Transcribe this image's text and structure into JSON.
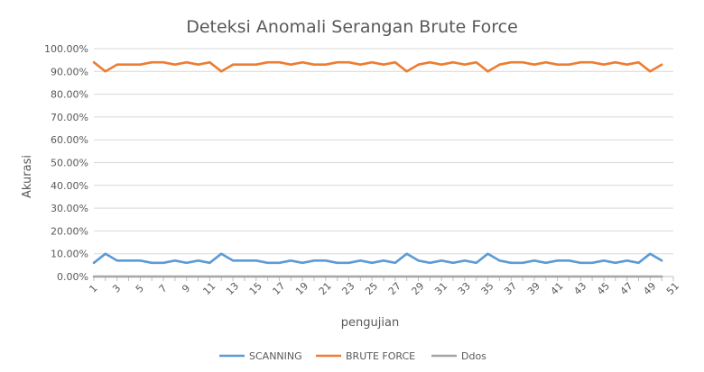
{
  "chart_data": {
    "type": "line",
    "title": "Deteksi Anomali Serangan Brute Force",
    "xlabel": "pengujian",
    "ylabel": "Akurasi",
    "ylim": [
      0,
      1
    ],
    "y_ticks": [
      0,
      0.1,
      0.2,
      0.3,
      0.4,
      0.5,
      0.6,
      0.7,
      0.8,
      0.9,
      1.0
    ],
    "y_tick_labels": [
      "0.00%",
      "10.00%",
      "20.00%",
      "30.00%",
      "40.00%",
      "50.00%",
      "60.00%",
      "70.00%",
      "80.00%",
      "90.00%",
      "100.00%"
    ],
    "x_tick_labels": [
      "1",
      "3",
      "5",
      "7",
      "9",
      "11",
      "13",
      "15",
      "17",
      "19",
      "21",
      "23",
      "25",
      "27",
      "29",
      "31",
      "33",
      "35",
      "37",
      "39",
      "41",
      "43",
      "45",
      "47",
      "49",
      "51"
    ],
    "x": [
      1,
      2,
      3,
      4,
      5,
      6,
      7,
      8,
      9,
      10,
      11,
      12,
      13,
      14,
      15,
      16,
      17,
      18,
      19,
      20,
      21,
      22,
      23,
      24,
      25,
      26,
      27,
      28,
      29,
      30,
      31,
      32,
      33,
      34,
      35,
      36,
      37,
      38,
      39,
      40,
      41,
      42,
      43,
      44,
      45,
      46,
      47,
      48,
      49,
      50
    ],
    "grid": true,
    "legend_position": "bottom",
    "series": [
      {
        "name": "SCANNING",
        "color": "#5B9BD5",
        "values": [
          0.06,
          0.1,
          0.07,
          0.07,
          0.07,
          0.06,
          0.06,
          0.07,
          0.06,
          0.07,
          0.06,
          0.1,
          0.07,
          0.07,
          0.07,
          0.06,
          0.06,
          0.07,
          0.06,
          0.07,
          0.07,
          0.06,
          0.06,
          0.07,
          0.06,
          0.07,
          0.06,
          0.1,
          0.07,
          0.06,
          0.07,
          0.06,
          0.07,
          0.06,
          0.1,
          0.07,
          0.06,
          0.06,
          0.07,
          0.06,
          0.07,
          0.07,
          0.06,
          0.06,
          0.07,
          0.06,
          0.07,
          0.06,
          0.1,
          0.07
        ]
      },
      {
        "name": "BRUTE FORCE",
        "color": "#ED7D31",
        "values": [
          0.94,
          0.9,
          0.93,
          0.93,
          0.93,
          0.94,
          0.94,
          0.93,
          0.94,
          0.93,
          0.94,
          0.9,
          0.93,
          0.93,
          0.93,
          0.94,
          0.94,
          0.93,
          0.94,
          0.93,
          0.93,
          0.94,
          0.94,
          0.93,
          0.94,
          0.93,
          0.94,
          0.9,
          0.93,
          0.94,
          0.93,
          0.94,
          0.93,
          0.94,
          0.9,
          0.93,
          0.94,
          0.94,
          0.93,
          0.94,
          0.93,
          0.93,
          0.94,
          0.94,
          0.93,
          0.94,
          0.93,
          0.94,
          0.9,
          0.93
        ]
      },
      {
        "name": "Ddos",
        "color": "#A5A5A5",
        "values": [
          0,
          0,
          0,
          0,
          0,
          0,
          0,
          0,
          0,
          0,
          0,
          0,
          0,
          0,
          0,
          0,
          0,
          0,
          0,
          0,
          0,
          0,
          0,
          0,
          0,
          0,
          0,
          0,
          0,
          0,
          0,
          0,
          0,
          0,
          0,
          0,
          0,
          0,
          0,
          0,
          0,
          0,
          0,
          0,
          0,
          0,
          0,
          0,
          0,
          0
        ]
      }
    ]
  }
}
